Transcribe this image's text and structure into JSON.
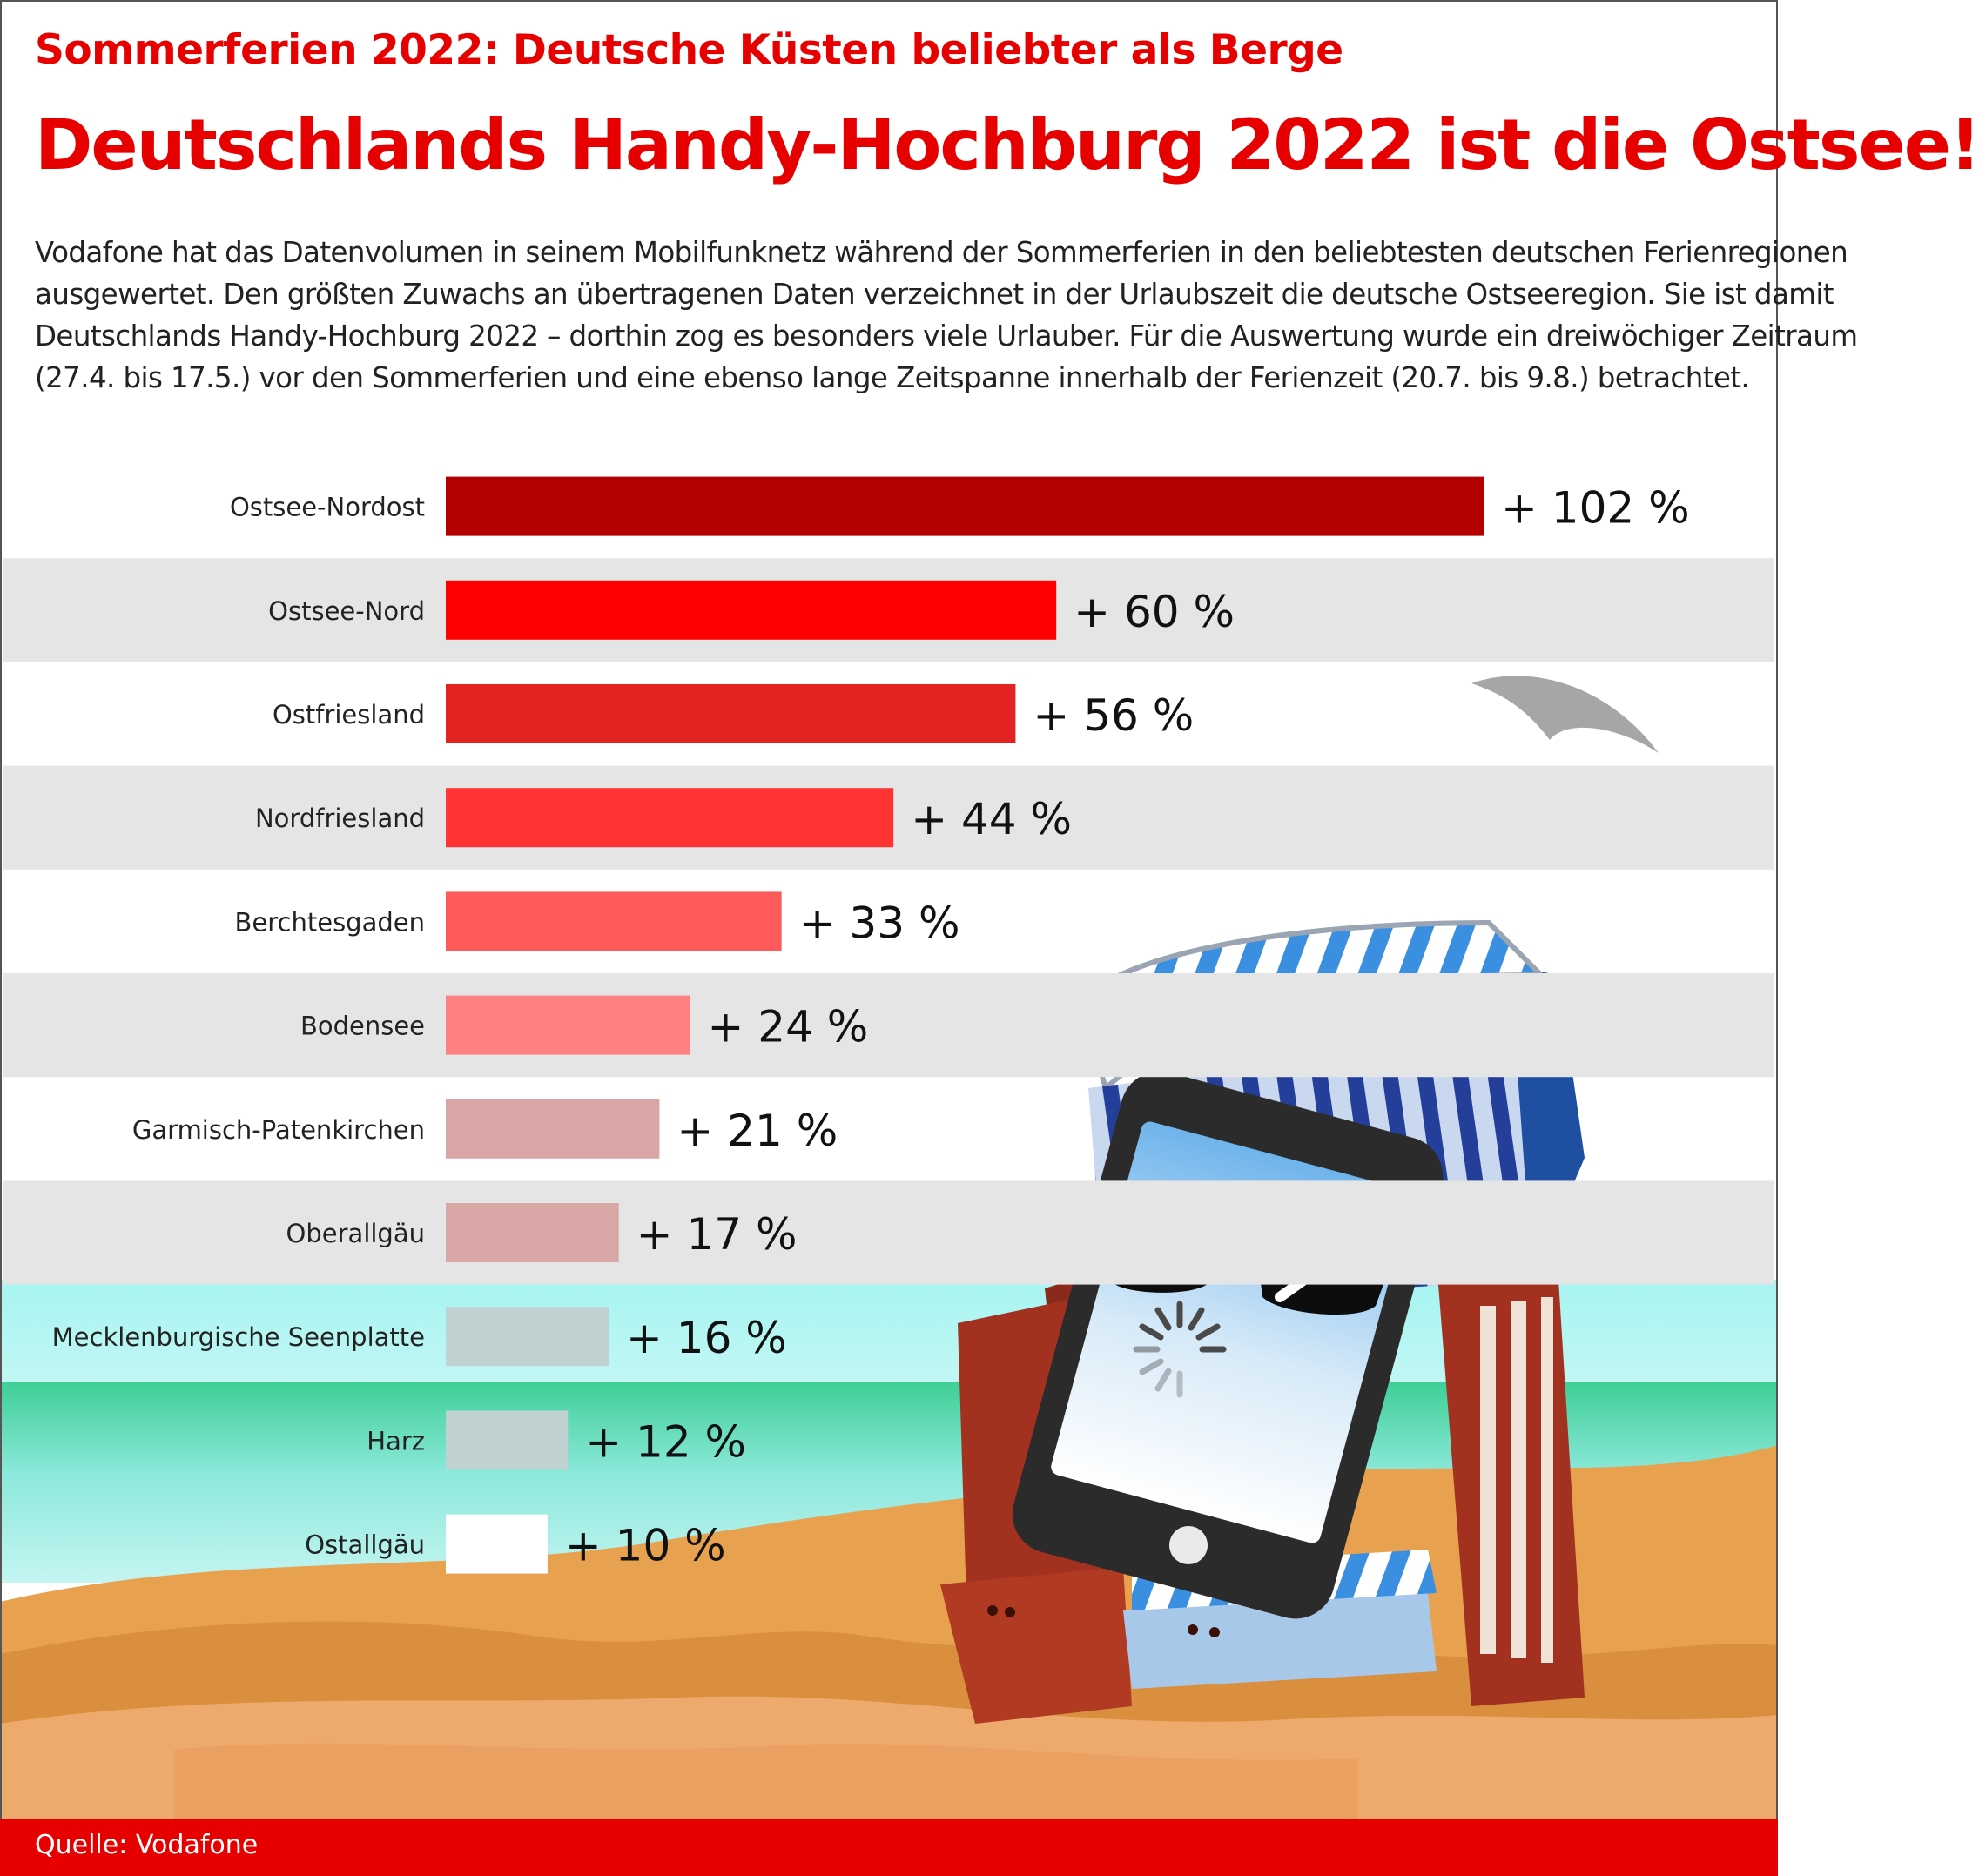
{
  "header": {
    "subtitle": "Sommerferien 2022: Deutsche Küsten beliebter als Berge",
    "title": "Deutschlands Handy-Hochburg 2022 ist die Ostsee!",
    "intro_lines": [
      "Vodafone hat das Datenvolumen in seinem Mobilfunknetz während der Sommerferien in den beliebtesten deutschen Ferienregionen",
      "ausgewertet. Den größten Zuwachs an übertragenen Daten verzeichnet in der Urlaubszeit die deutsche Ostseeregion. Sie ist damit",
      "Deutschlands Handy-Hochburg 2022 – dorthin zog es besonders viele Urlauber. Für die Auswertung wurde ein dreiwöchiger Zeitraum",
      "(27.4. bis 17.5.) vor den Sommerferien und eine ebenso lange Zeitspanne innerhalb der Ferienzeit (20.7. bis 9.8.) betrachtet."
    ]
  },
  "chart_data": {
    "type": "bar",
    "orientation": "horizontal",
    "title": "",
    "xlabel": "",
    "ylabel": "",
    "xlim": [
      0,
      102
    ],
    "grid": false,
    "legend": "none",
    "categories": [
      "Ostsee-Nordost",
      "Ostsee-Nord",
      "Ostfriesland",
      "Nordfriesland",
      "Berchtesgaden",
      "Bodensee",
      "Garmisch-Patenkirchen",
      "Oberallgäu",
      "Mecklenburgische Seenplatte",
      "Harz",
      "Ostallgäu"
    ],
    "values": [
      102,
      60,
      56,
      44,
      33,
      24,
      21,
      17,
      16,
      12,
      10
    ],
    "value_labels": [
      "+ 102 %",
      "+ 60 %",
      "+ 56 %",
      "+ 44 %",
      "+ 33 %",
      "+ 24 %",
      "+ 21 %",
      "+ 17 %",
      "+ 16 %",
      "+ 12 %",
      "+ 10 %"
    ],
    "bar_colors": [
      "#b40000",
      "#ff0000",
      "#e32222",
      "#ff3333",
      "#ff5a5a",
      "#ff8080",
      "#d9a6a6",
      "#d9a6a6",
      "#bfd1d1",
      "#bfd1d1",
      "#ffffff"
    ]
  },
  "footer": {
    "source": "Quelle: Vodafone"
  },
  "colors": {
    "accent": "#e60000",
    "band": "#e5e5e5",
    "sea": "#55d6b4",
    "sky": "#aff5f3",
    "sand": "#e8a85a",
    "text": "#222222"
  },
  "illustration": {
    "icons": [
      "beach-chair-icon",
      "smartphone-icon",
      "sunglasses-icon",
      "loading-spinner-icon",
      "seagull-icon"
    ]
  }
}
